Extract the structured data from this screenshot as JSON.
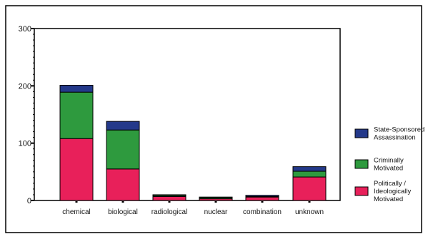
{
  "chart_data": {
    "type": "bar",
    "stacked": true,
    "categories": [
      "chemical",
      "biological",
      "radiological",
      "nuclear",
      "combination",
      "unknown"
    ],
    "series": [
      {
        "name": "Politically / Ideologically Motivated",
        "label_lines": [
          "Politically /",
          "Ideologically",
          "Motivated"
        ],
        "color": "#E8205A",
        "values": [
          108,
          55,
          7,
          3,
          6,
          41
        ]
      },
      {
        "name": "Criminally Motivated",
        "label_lines": [
          "Criminally",
          "Motivated"
        ],
        "color": "#2E9A3E",
        "values": [
          81,
          68,
          2,
          2,
          1,
          10
        ]
      },
      {
        "name": "State-Sponsored Assassination",
        "label_lines": [
          "State-Sponsored",
          "Assassination"
        ],
        "color": "#24398A",
        "values": [
          12,
          15,
          1,
          1,
          2,
          8
        ]
      }
    ],
    "legend_order": [
      2,
      1,
      0
    ],
    "yticks": [
      0,
      100,
      200,
      300
    ],
    "ylim": [
      0,
      300
    ],
    "xlabel": "",
    "ylabel": "",
    "title": "",
    "grid": false,
    "legend_position": "right"
  }
}
